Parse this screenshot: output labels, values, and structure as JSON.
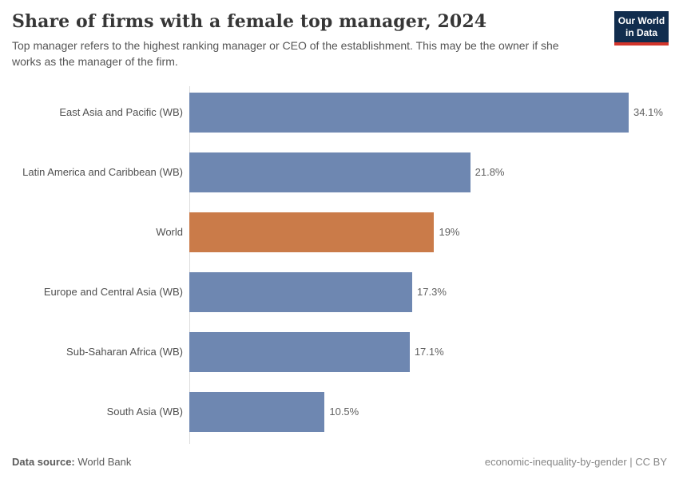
{
  "header": {
    "title": "Share of firms with a female top manager, 2024",
    "subtitle": "Top manager refers to the highest ranking manager or CEO of the establishment. This may be the owner if she works as the manager of the firm.",
    "logo": {
      "line1": "Our World",
      "line2": "in Data",
      "bg_color": "#112d4e",
      "accent_color": "#d2352b"
    }
  },
  "chart_data": {
    "type": "bar",
    "orientation": "horizontal",
    "title": "Share of firms with a female top manager, 2024",
    "xlabel": "",
    "ylabel": "",
    "xlim": [
      0,
      36.5
    ],
    "grid": false,
    "legend": false,
    "categories": [
      "East Asia and Pacific (WB)",
      "Latin America and Caribbean (WB)",
      "World",
      "Europe and Central Asia (WB)",
      "Sub-Saharan Africa (WB)",
      "South Asia (WB)"
    ],
    "values": [
      34.1,
      21.8,
      19,
      17.3,
      17.1,
      10.5
    ],
    "value_labels": [
      "34.1%",
      "21.8%",
      "19%",
      "17.3%",
      "17.1%",
      "10.5%"
    ],
    "bar_colors": [
      "#6e87b1",
      "#6e87b1",
      "#ca7b49",
      "#6e87b1",
      "#6e87b1",
      "#6e87b1"
    ],
    "highlight_category": "World",
    "default_bar_color": "#6e87b1",
    "highlight_bar_color": "#ca7b49"
  },
  "footer": {
    "datasource_label": "Data source:",
    "datasource_value": "World Bank",
    "license_note": "economic-inequality-by-gender | CC BY"
  }
}
